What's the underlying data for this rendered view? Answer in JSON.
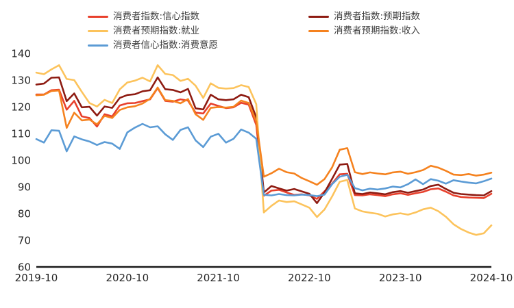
{
  "chart_data": {
    "type": "line",
    "title": "",
    "xlabel": "",
    "ylabel": "",
    "x_unit": "month",
    "x_start": "2019-10",
    "x_end": "2024-10",
    "x_tick_labels": [
      "2019-10",
      "2020-10",
      "2021-10",
      "2022-10",
      "2023-10",
      "2024-10"
    ],
    "x_tick_indices": [
      0,
      12,
      24,
      36,
      48,
      60
    ],
    "ylim": [
      60,
      140
    ],
    "y_ticks": [
      60,
      70,
      80,
      90,
      100,
      110,
      120,
      130,
      140
    ],
    "grid": false,
    "legend_position": "top",
    "axis_color": "#1a1a1a",
    "series": [
      {
        "name": "消费者指数:信心指数",
        "color": "#e8402c",
        "values": [
          124.6,
          124.6,
          126.2,
          126.4,
          118.9,
          122.2,
          116.4,
          115.8,
          112.6,
          117.2,
          116.4,
          120.5,
          121.3,
          121.4,
          122.1,
          122.8,
          127.0,
          122.2,
          121.9,
          122.8,
          122.3,
          117.8,
          117.5,
          121.2,
          120.3,
          119.5,
          119.8,
          121.5,
          120.8,
          113.2,
          86.7,
          88.6,
          88.9,
          87.9,
          87.0,
          87.2,
          86.8,
          85.5,
          88.3,
          91.2,
          94.7,
          94.9,
          86.9,
          86.8,
          87.2,
          86.9,
          86.5,
          87.2,
          87.6,
          87.0,
          87.6,
          88.1,
          89.1,
          89.4,
          88.2,
          86.8,
          86.2,
          86.0,
          85.9,
          85.8,
          87.4
        ]
      },
      {
        "name": "消费者指数:预期指数",
        "color": "#8e1b12",
        "values": [
          128.3,
          128.7,
          130.9,
          131.0,
          122.1,
          125.0,
          119.8,
          120.0,
          116.7,
          120.1,
          119.6,
          123.3,
          124.4,
          124.7,
          125.8,
          126.2,
          131.0,
          126.6,
          126.3,
          125.4,
          126.7,
          119.4,
          119.0,
          124.5,
          122.8,
          122.5,
          122.8,
          124.5,
          123.6,
          116.0,
          87.9,
          90.3,
          89.4,
          88.6,
          89.2,
          88.3,
          87.4,
          83.9,
          87.9,
          93.0,
          98.3,
          98.6,
          87.6,
          87.3,
          87.9,
          87.6,
          87.2,
          88.0,
          88.4,
          87.8,
          88.4,
          89.0,
          90.3,
          90.8,
          89.2,
          87.8,
          87.3,
          87.1,
          86.9,
          86.8,
          88.4
        ]
      },
      {
        "name": "消费者预期指数:就业",
        "color": "#fcc35c",
        "values": [
          132.8,
          132.2,
          134.0,
          135.6,
          130.4,
          130.0,
          125.6,
          121.4,
          120.1,
          122.6,
          121.4,
          126.5,
          129.1,
          129.8,
          130.9,
          129.5,
          135.6,
          132.3,
          131.9,
          129.7,
          130.5,
          127.9,
          123.3,
          128.8,
          127.1,
          126.8,
          127.0,
          128.1,
          127.4,
          121.0,
          80.4,
          82.9,
          84.9,
          84.3,
          84.6,
          83.4,
          82.2,
          78.7,
          81.5,
          86.4,
          91.9,
          92.6,
          81.9,
          80.8,
          80.3,
          79.9,
          78.9,
          79.7,
          80.1,
          79.6,
          80.4,
          81.6,
          82.2,
          80.9,
          78.8,
          76.0,
          74.2,
          72.9,
          72.0,
          72.6,
          75.6
        ]
      },
      {
        "name": "消费者预期指数:收入",
        "color": "#f5821f",
        "values": [
          124.3,
          124.5,
          125.9,
          126.1,
          112.1,
          117.8,
          114.9,
          115.2,
          113.4,
          116.6,
          115.8,
          118.8,
          119.8,
          120.2,
          121.2,
          123.0,
          127.2,
          122.5,
          122.2,
          121.3,
          122.9,
          117.2,
          115.1,
          119.6,
          119.9,
          119.7,
          120.0,
          122.3,
          121.4,
          114.5,
          93.8,
          95.1,
          96.8,
          95.5,
          95.0,
          93.3,
          92.1,
          90.8,
          92.9,
          97.3,
          103.9,
          104.5,
          95.5,
          94.8,
          95.4,
          95.0,
          94.7,
          95.4,
          95.7,
          94.9,
          95.5,
          96.3,
          97.9,
          97.2,
          96.0,
          94.6,
          94.4,
          94.8,
          94.2,
          94.6,
          95.3
        ]
      },
      {
        "name": "消费者信心指数:消费意愿",
        "color": "#5b9bd5",
        "values": [
          107.9,
          106.6,
          111.2,
          111.0,
          103.3,
          108.9,
          107.8,
          107.0,
          105.7,
          106.8,
          106.2,
          104.2,
          110.4,
          112.2,
          113.6,
          112.3,
          112.7,
          109.7,
          107.6,
          111.3,
          112.3,
          107.4,
          104.9,
          108.8,
          109.9,
          106.6,
          108.0,
          111.5,
          110.3,
          108.0,
          87.0,
          86.8,
          87.3,
          86.9,
          86.8,
          87.1,
          86.9,
          86.5,
          87.1,
          91.0,
          93.8,
          94.5,
          89.5,
          88.7,
          89.3,
          89.0,
          89.4,
          90.1,
          89.8,
          91.0,
          92.8,
          91.0,
          92.9,
          92.3,
          91.2,
          92.5,
          92.0,
          91.6,
          91.3,
          92.1,
          93.1
        ]
      }
    ]
  }
}
